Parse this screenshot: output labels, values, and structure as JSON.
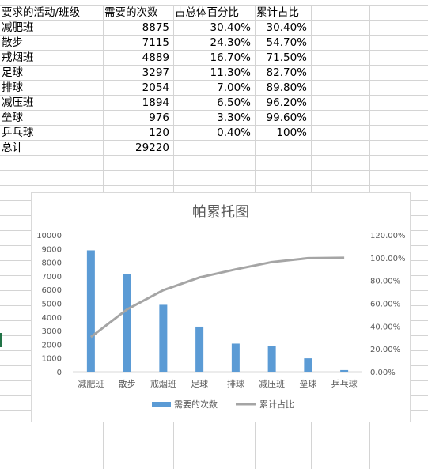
{
  "table": {
    "headers": [
      "要求的活动/班级",
      "需要的次数",
      "占总体百分比",
      "累计占比"
    ],
    "rows": [
      [
        "减肥班",
        "8875",
        "30.40%",
        "30.40%"
      ],
      [
        "散步",
        "7115",
        "24.30%",
        "54.70%"
      ],
      [
        "戒烟班",
        "4889",
        "16.70%",
        "71.50%"
      ],
      [
        "足球",
        "3297",
        "11.30%",
        "82.70%"
      ],
      [
        "排球",
        "2054",
        "7.00%",
        "89.80%"
      ],
      [
        "减压班",
        "1894",
        "6.50%",
        "96.20%"
      ],
      [
        "垒球",
        "976",
        "3.30%",
        "99.60%"
      ],
      [
        "乒乓球",
        "120",
        "0.40%",
        "100%"
      ]
    ],
    "total_label": "总计",
    "total_value": "29220"
  },
  "chart_data": {
    "type": "bar",
    "title": "帕累托图",
    "categories": [
      "减肥班",
      "散步",
      "戒烟班",
      "足球",
      "排球",
      "减压班",
      "垒球",
      "乒乓球"
    ],
    "series": [
      {
        "name": "需要的次数",
        "type": "bar",
        "axis": "left",
        "color": "#5b9bd5",
        "values": [
          8875,
          7115,
          4889,
          3297,
          2054,
          1894,
          976,
          120
        ]
      },
      {
        "name": "累计占比",
        "type": "line",
        "axis": "right",
        "color": "#a5a5a5",
        "values": [
          0.304,
          0.547,
          0.715,
          0.827,
          0.898,
          0.962,
          0.996,
          1.0
        ]
      }
    ],
    "y_left": {
      "min": 0,
      "max": 10000,
      "step": 1000,
      "ticks": [
        "0",
        "1000",
        "2000",
        "3000",
        "4000",
        "5000",
        "6000",
        "7000",
        "8000",
        "9000",
        "10000"
      ]
    },
    "y_right": {
      "min": 0,
      "max": 1.2,
      "step": 0.2,
      "ticks": [
        "0.00%",
        "20.00%",
        "40.00%",
        "60.00%",
        "80.00%",
        "100.00%",
        "120.00%"
      ]
    },
    "legend_position": "bottom",
    "grid": false
  }
}
